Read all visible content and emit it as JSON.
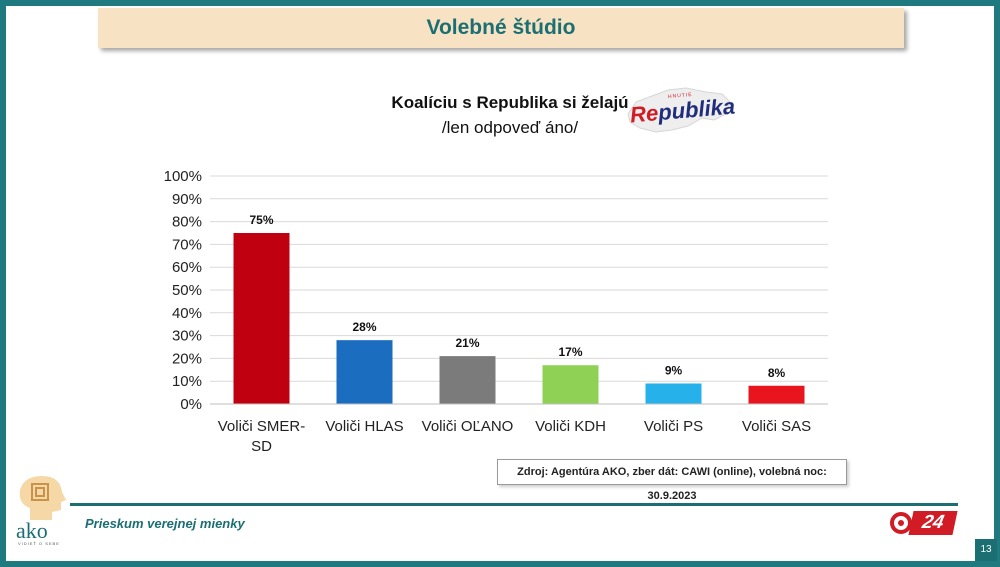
{
  "header": {
    "title": "Volebné štúdio"
  },
  "logos": {
    "republika": {
      "text_prefix": "Re",
      "text_suffix": "publika",
      "subtitle": "HNUTIE"
    },
    "ako": {
      "word": "ako",
      "tagline": "VIDIEŤ O SEBE"
    },
    "tv": {
      "number": "24"
    }
  },
  "chart_data": {
    "type": "bar",
    "title": "Koalíciu s Republika si želajú",
    "subtitle": "/len odpoveď áno/",
    "categories": [
      "Voliči SMER-SD",
      "Voliči HLAS",
      "Voliči OĽANO",
      "Voliči KDH",
      "Voliči PS",
      "Voliči SAS"
    ],
    "category_lines": [
      [
        "Voliči SMER-",
        "SD"
      ],
      [
        "Voliči HLAS"
      ],
      [
        "Voliči OĽANO"
      ],
      [
        "Voliči KDH"
      ],
      [
        "Voliči PS"
      ],
      [
        "Voliči SAS"
      ]
    ],
    "values": [
      75,
      28,
      21,
      17,
      9,
      8
    ],
    "value_labels": [
      "75%",
      "28%",
      "21%",
      "17%",
      "9%",
      "8%"
    ],
    "colors": [
      "#c00010",
      "#1b6dbf",
      "#7b7b7b",
      "#8fd155",
      "#27b1ea",
      "#e8141e"
    ],
    "ylim": [
      0,
      100
    ],
    "yticks": [
      0,
      10,
      20,
      30,
      40,
      50,
      60,
      70,
      80,
      90,
      100
    ],
    "ytick_labels": [
      "0%",
      "10%",
      "20%",
      "30%",
      "40%",
      "50%",
      "60%",
      "70%",
      "80%",
      "90%",
      "100%"
    ],
    "grid": true,
    "xlabel": "",
    "ylabel": ""
  },
  "source": "Zdroj: Agentúra AKO, zber dát: CAWI (online), volebná noc: 30.9.2023",
  "footer": {
    "text": "Prieskum verejnej mienky",
    "page_number": "13"
  }
}
